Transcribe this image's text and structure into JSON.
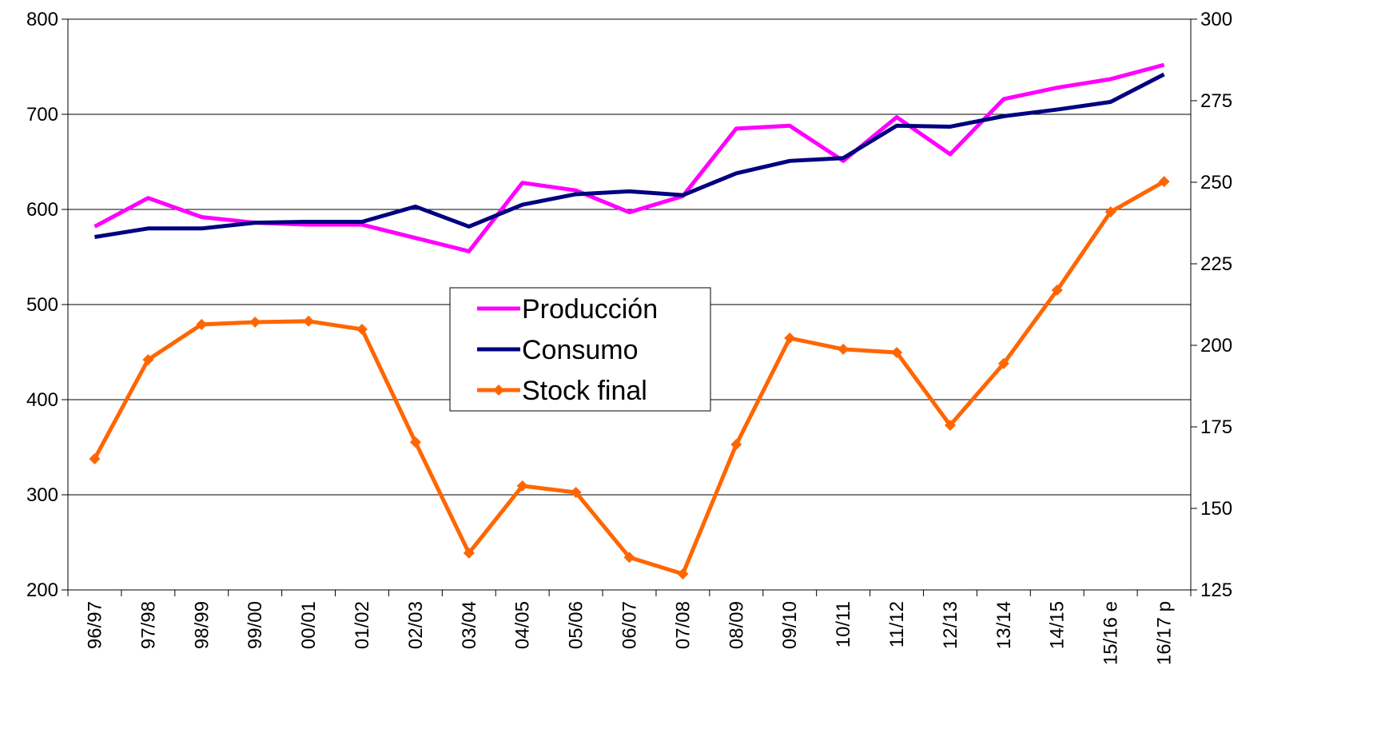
{
  "chart_data": {
    "type": "line",
    "categories": [
      "96/97",
      "97/98",
      "98/99",
      "99/00",
      "00/01",
      "01/02",
      "02/03",
      "03/04",
      "04/05",
      "05/06",
      "06/07",
      "07/08",
      "08/09",
      "09/10",
      "10/11",
      "11/12",
      "12/13",
      "13/14",
      "14/15",
      "15/16 e",
      "16/17 p"
    ],
    "series": [
      {
        "name": "Producción",
        "color": "#ff00ff",
        "values": [
          582,
          612,
          592,
          586,
          584,
          584,
          570,
          556,
          628,
          620,
          597,
          614,
          685,
          688,
          651,
          697,
          658,
          716,
          728,
          737,
          752
        ]
      },
      {
        "name": "Consumo",
        "color": "#000080",
        "values": [
          571,
          580,
          580,
          586,
          587,
          587,
          603,
          582,
          605,
          616,
          619,
          615,
          638,
          651,
          654,
          688,
          687,
          698,
          705,
          713,
          742
        ]
      },
      {
        "name": "Stock final",
        "color": "#ff6600",
        "axis": "y2",
        "marker": "diamond",
        "values": [
          165.2,
          195.6,
          206.4,
          207.1,
          207.4,
          204.9,
          170.3,
          136.3,
          156.9,
          154.9,
          135.0,
          129.9,
          169.6,
          202.2,
          198.8,
          197.8,
          175.5,
          194.4,
          216.9,
          240.9,
          250.2
        ]
      }
    ],
    "ylim": [
      200,
      800
    ],
    "yticks": [
      200,
      300,
      400,
      500,
      600,
      700,
      800
    ],
    "y2lim": [
      125,
      300
    ],
    "y2ticks": [
      125,
      150,
      175,
      200,
      225,
      250,
      275,
      300
    ],
    "grid": true,
    "legend": "center"
  }
}
